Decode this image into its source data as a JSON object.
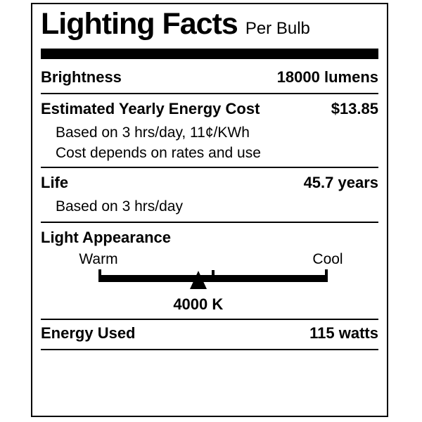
{
  "label": {
    "title": "Lighting Facts",
    "subtitle": "Per Bulb",
    "colors": {
      "ink": "#000000",
      "background": "#ffffff"
    },
    "rows": {
      "brightness": {
        "label": "Brightness",
        "value": "18000 lumens"
      },
      "energy_cost": {
        "label": "Estimated Yearly Energy Cost",
        "value": "$13.85",
        "notes": [
          "Based on 3 hrs/day, 11¢/KWh",
          "Cost depends on rates and use"
        ]
      },
      "life": {
        "label": "Life",
        "value": "45.7 years",
        "note": "Based on 3 hrs/day"
      },
      "light_appearance": {
        "label": "Light Appearance",
        "warm_label": "Warm",
        "cool_label": "Cool",
        "kelvin_value": "4000 K",
        "marker_position": "43.5%"
      },
      "energy_used": {
        "label": "Energy Used",
        "value": "115 watts"
      }
    }
  }
}
